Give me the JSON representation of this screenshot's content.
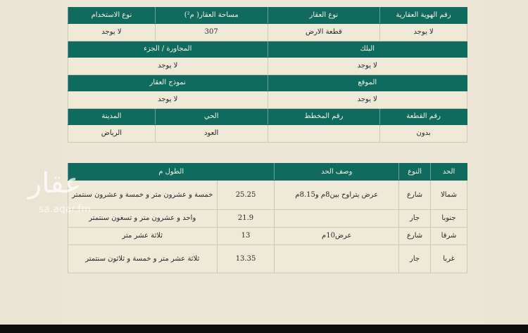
{
  "property_info": {
    "row1_headers": [
      "رقم الهوية العقارية",
      "نوع العقار",
      "مساحة العقار( م²)",
      "نوع الاستخدام"
    ],
    "row1_values": [
      "لا يوجد",
      "قطعة الارض",
      "307",
      "لا يوجد"
    ],
    "row2_headers": [
      "البلك",
      "المجاورة / الجزء"
    ],
    "row2_values": [
      "لا يوجد",
      "لا يوجد"
    ],
    "row3_headers": [
      "الموقع",
      "نموذج العقار"
    ],
    "row3_values": [
      "لا يوجد",
      "لا يوجد"
    ],
    "row4_headers": [
      "رقم القطعة",
      "رقم المخطط",
      "الحي",
      "المدينة"
    ],
    "row4_values": [
      "بدون",
      "",
      "العود",
      "الرياض"
    ]
  },
  "boundaries": {
    "headers": [
      "الحد",
      "النوع",
      "وصف الحد",
      "الطول م"
    ],
    "rows": [
      {
        "side": "شمالا",
        "type": "شارع",
        "desc": "عرض يتراوح بين8م و8.15م",
        "length": "25.25",
        "length_text": "خمسة و عشرون متر و خمسة و عشرون سنتمتر"
      },
      {
        "side": "جنوبا",
        "type": "جار",
        "desc": "",
        "length": "21.9",
        "length_text": "واحد و عشرون متر و تسعون سنتمتر"
      },
      {
        "side": "شرقا",
        "type": "شارع",
        "desc": "عرض10م",
        "length": "13",
        "length_text": "ثلاثة عشر متر"
      },
      {
        "side": "غربا",
        "type": "جار",
        "desc": "",
        "length": "13.35",
        "length_text": "ثلاثة عشر متر و خمسة و ثلاثون سنتمتر"
      }
    ]
  },
  "watermark": {
    "logo": "عقار",
    "url": "sa.aqar.fm"
  }
}
